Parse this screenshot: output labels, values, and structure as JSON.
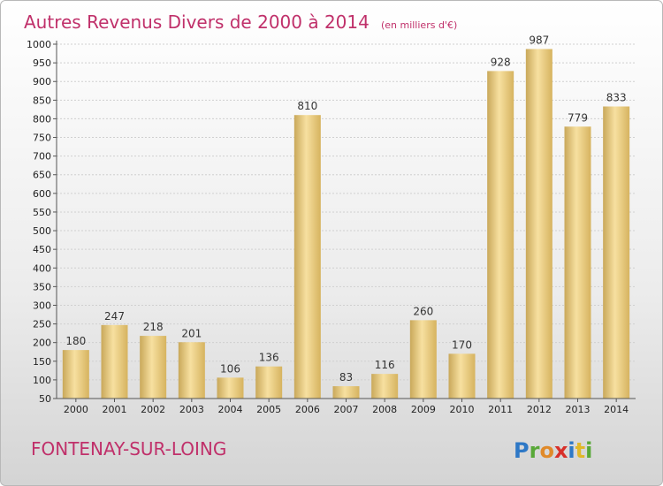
{
  "chart_data": {
    "type": "bar",
    "title": "Autres Revenus Divers de 2000 à 2014",
    "subtitle": "(en milliers d'€)",
    "categories": [
      "2000",
      "2001",
      "2002",
      "2003",
      "2004",
      "2005",
      "2006",
      "2007",
      "2008",
      "2009",
      "2010",
      "2011",
      "2012",
      "2013",
      "2014"
    ],
    "values": [
      180,
      247,
      218,
      201,
      106,
      136,
      810,
      83,
      116,
      260,
      170,
      928,
      987,
      779,
      833
    ],
    "ylim": [
      50,
      1000
    ],
    "yticks": [
      50,
      100,
      150,
      200,
      250,
      300,
      350,
      400,
      450,
      500,
      550,
      600,
      650,
      700,
      750,
      800,
      850,
      900,
      950,
      1000
    ],
    "grid": true,
    "bar_color": "#e8c46a"
  },
  "footer": {
    "place": "FONTENAY-SUR-LOING",
    "brand": "Proxiti"
  }
}
